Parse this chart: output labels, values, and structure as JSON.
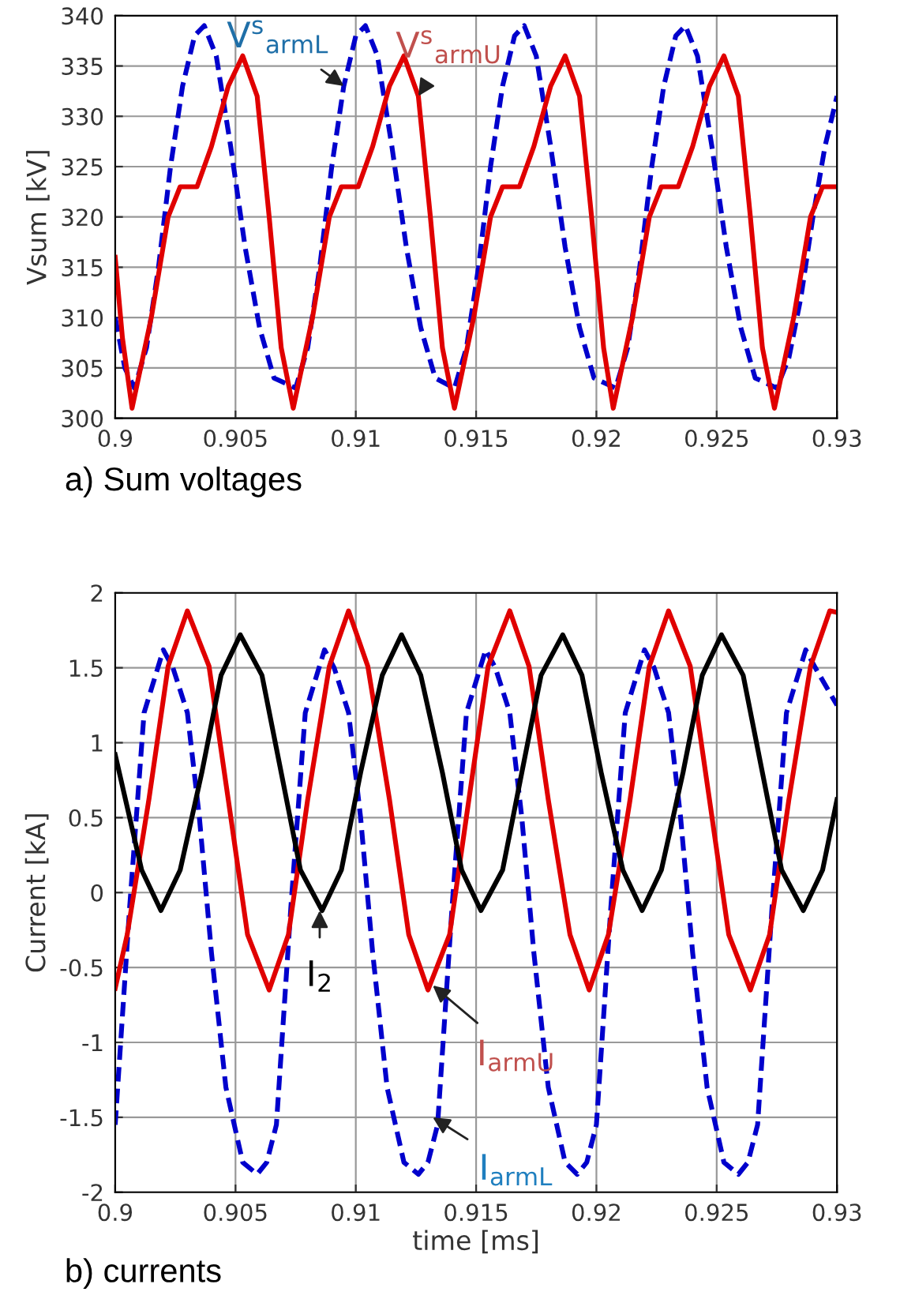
{
  "chart_data": [
    {
      "type": "line",
      "title": "a) Sum voltages",
      "ylabel": "Vsum [kV]",
      "xlim": [
        0.9,
        0.93
      ],
      "xticks": [
        0.9,
        0.905,
        0.91,
        0.915,
        0.92,
        0.925,
        0.93
      ],
      "ylim": [
        300,
        340
      ],
      "yticks": [
        300,
        305,
        310,
        315,
        320,
        325,
        330,
        335,
        340
      ],
      "grid": true,
      "series": [
        {
          "color": "#0000cc",
          "line_style": "dashed",
          "x": [
            0.9,
            0.9004,
            0.9008,
            0.9013,
            0.9018,
            0.9023,
            0.9028,
            0.9033,
            0.9037,
            0.9042,
            0.9048,
            0.9054,
            0.906,
            0.9066,
            0.9075,
            0.908,
            0.9085,
            0.909,
            0.9095,
            0.91,
            0.9104,
            0.9109,
            0.9115,
            0.9121,
            0.9127,
            0.9133,
            0.9141,
            0.9146,
            0.9151,
            0.9156,
            0.9161,
            0.9166,
            0.917,
            0.9175,
            0.9181,
            0.9187,
            0.9193,
            0.9199,
            0.9208,
            0.9213,
            0.9218,
            0.9223,
            0.9228,
            0.9233,
            0.9237,
            0.9242,
            0.9248,
            0.9254,
            0.926,
            0.9266,
            0.9275,
            0.928,
            0.9285,
            0.929,
            0.9295,
            0.93
          ],
          "values": [
            310,
            305,
            303,
            307,
            315,
            325,
            333,
            338,
            339,
            336,
            327,
            317,
            309,
            304,
            303,
            307,
            315,
            325,
            333,
            338,
            339,
            336,
            327,
            317,
            309,
            304,
            303,
            307,
            315,
            325,
            333,
            338,
            339,
            336,
            327,
            317,
            309,
            304,
            303,
            307,
            315,
            325,
            333,
            338,
            339,
            336,
            327,
            317,
            309,
            304,
            303,
            306,
            312,
            320,
            327,
            332
          ]
        },
        {
          "color": "#e00000",
          "line_style": "solid",
          "x": [
            0.9,
            0.9003,
            0.9007,
            0.9015,
            0.9022,
            0.9027,
            0.9034,
            0.904,
            0.9047,
            0.9053,
            0.9059,
            0.9064,
            0.9069,
            0.9074,
            0.9082,
            0.9089,
            0.9094,
            0.9101,
            0.9107,
            0.9114,
            0.912,
            0.9126,
            0.9131,
            0.9136,
            0.9141,
            0.9149,
            0.9156,
            0.9161,
            0.9168,
            0.9174,
            0.9181,
            0.9187,
            0.9193,
            0.9198,
            0.9203,
            0.9207,
            0.9215,
            0.9222,
            0.9227,
            0.9234,
            0.924,
            0.9247,
            0.9253,
            0.9259,
            0.9264,
            0.9269,
            0.9274,
            0.9282,
            0.9289,
            0.9294,
            0.93
          ],
          "values": [
            316,
            308,
            301,
            310,
            320,
            323,
            323,
            327,
            333,
            336,
            332,
            320,
            307,
            301,
            310,
            320,
            323,
            323,
            327,
            333,
            336,
            332,
            320,
            307,
            301,
            310,
            320,
            323,
            323,
            327,
            333,
            336,
            332,
            320,
            307,
            301,
            310,
            320,
            323,
            323,
            327,
            333,
            336,
            332,
            320,
            307,
            301,
            310,
            320,
            323,
            323
          ]
        }
      ],
      "annotations": [
        {
          "text": "V$^{s}$$_{armL}$",
          "x": 0.9095,
          "y": 333
        },
        {
          "text": "V$^{s}$$_{armU}$",
          "x": 0.9126,
          "y": 332
        }
      ]
    },
    {
      "type": "line",
      "title": "b) currents",
      "xlabel": "time [ms]",
      "ylabel": "Current [kA]",
      "xlim": [
        0.9,
        0.93
      ],
      "xticks": [
        0.9,
        0.905,
        0.91,
        0.915,
        0.92,
        0.925,
        0.93
      ],
      "ylim": [
        -2,
        2
      ],
      "yticks": [
        -2,
        -1.5,
        -1,
        -0.5,
        0,
        0.5,
        1,
        1.5,
        2
      ],
      "grid": true,
      "series": [
        {
          "color": "#0000cc",
          "line_style": "dashed",
          "x": [
            0.9,
            0.9006,
            0.9012,
            0.902,
            0.9024,
            0.903,
            0.9035,
            0.904,
            0.9046,
            0.9053,
            0.9059,
            0.9063,
            0.9067,
            0.9073,
            0.9079,
            0.9087,
            0.9091,
            0.9097,
            0.9102,
            0.9107,
            0.9113,
            0.912,
            0.9126,
            0.913,
            0.9134,
            0.914,
            0.9146,
            0.9154,
            0.9158,
            0.9164,
            0.9169,
            0.9174,
            0.918,
            0.9187,
            0.9192,
            0.9196,
            0.92,
            0.9206,
            0.9212,
            0.922,
            0.9224,
            0.923,
            0.9235,
            0.924,
            0.9246,
            0.9253,
            0.9259,
            0.9263,
            0.9267,
            0.9273,
            0.9279,
            0.9287,
            0.9291,
            0.93
          ],
          "values": [
            -1.55,
            -0.1,
            1.2,
            1.62,
            1.5,
            1.2,
            0.5,
            -0.4,
            -1.3,
            -1.8,
            -1.88,
            -1.8,
            -1.55,
            -0.1,
            1.2,
            1.62,
            1.5,
            1.2,
            0.5,
            -0.4,
            -1.3,
            -1.8,
            -1.88,
            -1.8,
            -1.55,
            -0.1,
            1.2,
            1.62,
            1.5,
            1.2,
            0.5,
            -0.4,
            -1.3,
            -1.8,
            -1.88,
            -1.8,
            -1.55,
            -0.1,
            1.2,
            1.62,
            1.5,
            1.2,
            0.5,
            -0.4,
            -1.3,
            -1.8,
            -1.88,
            -1.8,
            -1.55,
            -0.1,
            1.2,
            1.62,
            1.5,
            1.25
          ]
        },
        {
          "color": "#e00000",
          "line_style": "solid",
          "x": [
            0.9,
            0.9005,
            0.9014,
            0.9022,
            0.903,
            0.9039,
            0.9047,
            0.9055,
            0.9064,
            0.9072,
            0.908,
            0.9089,
            0.9097,
            0.9105,
            0.9114,
            0.9122,
            0.913,
            0.9139,
            0.9147,
            0.9155,
            0.9164,
            0.9172,
            0.918,
            0.9189,
            0.9197,
            0.9205,
            0.9214,
            0.9222,
            0.923,
            0.9239,
            0.9247,
            0.9255,
            0.9264,
            0.9272,
            0.928,
            0.9289,
            0.9297,
            0.93
          ],
          "values": [
            -0.64,
            -0.28,
            0.62,
            1.51,
            1.88,
            1.51,
            0.62,
            -0.28,
            -0.65,
            -0.28,
            0.62,
            1.51,
            1.88,
            1.51,
            0.62,
            -0.28,
            -0.65,
            -0.28,
            0.62,
            1.51,
            1.88,
            1.51,
            0.62,
            -0.28,
            -0.65,
            -0.28,
            0.62,
            1.51,
            1.88,
            1.51,
            0.62,
            -0.28,
            -0.65,
            -0.28,
            0.62,
            1.51,
            1.88,
            1.87
          ]
        },
        {
          "color": "#000000",
          "line_style": "solid",
          "x": [
            0.9,
            0.9011,
            0.9019,
            0.9027,
            0.9036,
            0.9044,
            0.9052,
            0.9061,
            0.9069,
            0.9077,
            0.9086,
            0.9094,
            0.9102,
            0.9111,
            0.9119,
            0.9127,
            0.9136,
            0.9144,
            0.9152,
            0.9161,
            0.9169,
            0.9177,
            0.9186,
            0.9194,
            0.9202,
            0.9211,
            0.9219,
            0.9227,
            0.9236,
            0.9244,
            0.9252,
            0.9261,
            0.9269,
            0.9277,
            0.9286,
            0.9294,
            0.93
          ],
          "values": [
            0.92,
            0.15,
            -0.12,
            0.15,
            0.8,
            1.45,
            1.72,
            1.45,
            0.8,
            0.15,
            -0.12,
            0.15,
            0.8,
            1.45,
            1.72,
            1.45,
            0.8,
            0.15,
            -0.12,
            0.15,
            0.8,
            1.45,
            1.72,
            1.45,
            0.8,
            0.15,
            -0.12,
            0.15,
            0.8,
            1.45,
            1.72,
            1.45,
            0.8,
            0.15,
            -0.12,
            0.15,
            0.62
          ]
        }
      ],
      "annotations": [
        {
          "text": "I$_{2}$",
          "x": 0.9085,
          "y": -0.12
        },
        {
          "text": "I$_{armU}$",
          "x": 0.9132,
          "y": -0.62
        },
        {
          "text": "I$_{armL}$",
          "x": 0.9132,
          "y": -1.5
        }
      ]
    }
  ]
}
